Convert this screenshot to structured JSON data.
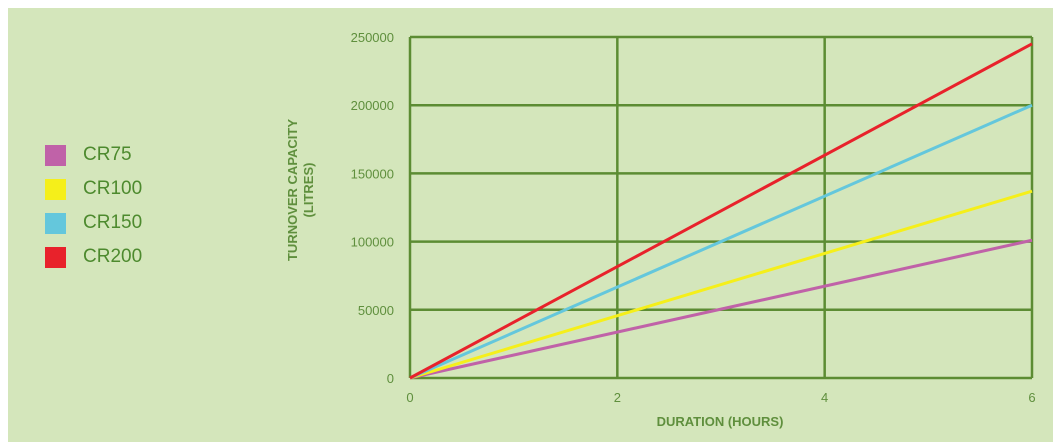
{
  "chart_data": {
    "type": "line",
    "title": "",
    "xlabel": "DURATION (HOURS)",
    "ylabel_line1": "TURNOVER CAPACITY",
    "ylabel_line2": "(LITRES)",
    "xlim": [
      0,
      6
    ],
    "ylim": [
      0,
      250000
    ],
    "x_ticks": [
      0,
      2,
      4,
      6
    ],
    "y_ticks": [
      0,
      50000,
      100000,
      150000,
      200000,
      250000
    ],
    "grid": true,
    "legend_position": "left",
    "series": [
      {
        "name": "CR75",
        "color": "#c062a8",
        "x": [
          0,
          6
        ],
        "y": [
          0,
          101000
        ]
      },
      {
        "name": "CR100",
        "color": "#f5ef1a",
        "x": [
          0,
          6
        ],
        "y": [
          0,
          137000
        ]
      },
      {
        "name": "CR150",
        "color": "#64c7dc",
        "x": [
          0,
          6
        ],
        "y": [
          0,
          200000
        ]
      },
      {
        "name": "CR200",
        "color": "#e8222b",
        "x": [
          0,
          6
        ],
        "y": [
          0,
          245000
        ]
      }
    ]
  },
  "colors": {
    "background": "#d4e6bb",
    "grid": "#5c8c33",
    "text": "#5f8f3d"
  }
}
